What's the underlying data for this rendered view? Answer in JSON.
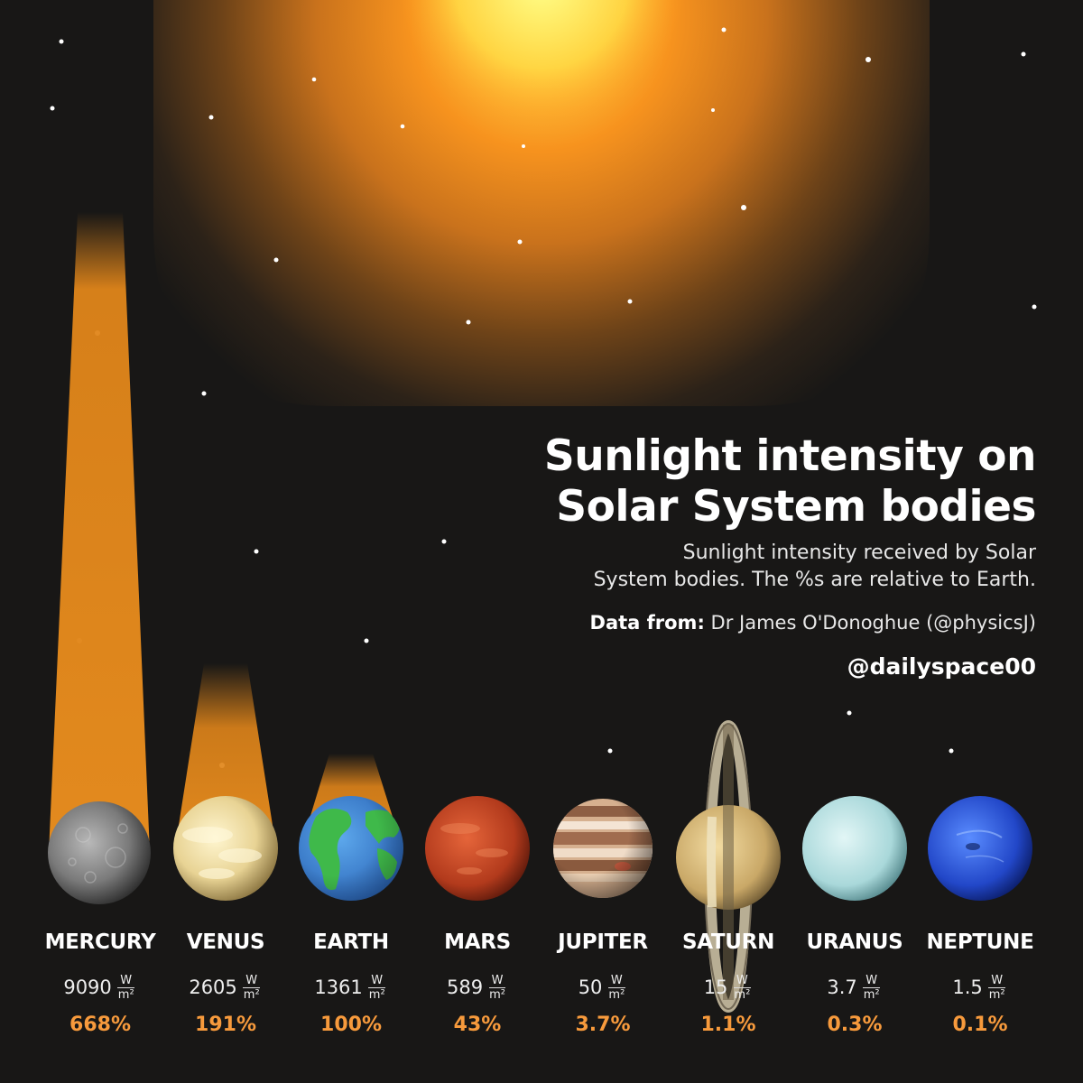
{
  "header": {
    "title_line1": "Sunlight intensity on",
    "title_line2": "Solar System bodies",
    "subtitle_line1": "Sunlight intensity received by Solar",
    "subtitle_line2": "System bodies. The %s are relative to Earth.",
    "source_label": "Data from:",
    "source_value": "Dr James O'Donoghue (@physicsJ)",
    "handle": "@dailyspace00"
  },
  "unit": {
    "numerator": "W",
    "denominator": "m²"
  },
  "colors": {
    "background": "#181716",
    "sun": "#ff9a1f",
    "beam": "#e0851a",
    "percent": "#f79a3c"
  },
  "planets": [
    {
      "name": "MERCURY",
      "value": "9090",
      "percent": "668%"
    },
    {
      "name": "VENUS",
      "value": "2605",
      "percent": "191%"
    },
    {
      "name": "EARTH",
      "value": "1361",
      "percent": "100%"
    },
    {
      "name": "MARS",
      "value": "589",
      "percent": "43%"
    },
    {
      "name": "JUPITER",
      "value": "50",
      "percent": "3.7%"
    },
    {
      "name": "SATURN",
      "value": "15",
      "percent": "1.1%"
    },
    {
      "name": "URANUS",
      "value": "3.7",
      "percent": "0.3%"
    },
    {
      "name": "NEPTUNE",
      "value": "1.5",
      "percent": "0.1%"
    }
  ]
}
